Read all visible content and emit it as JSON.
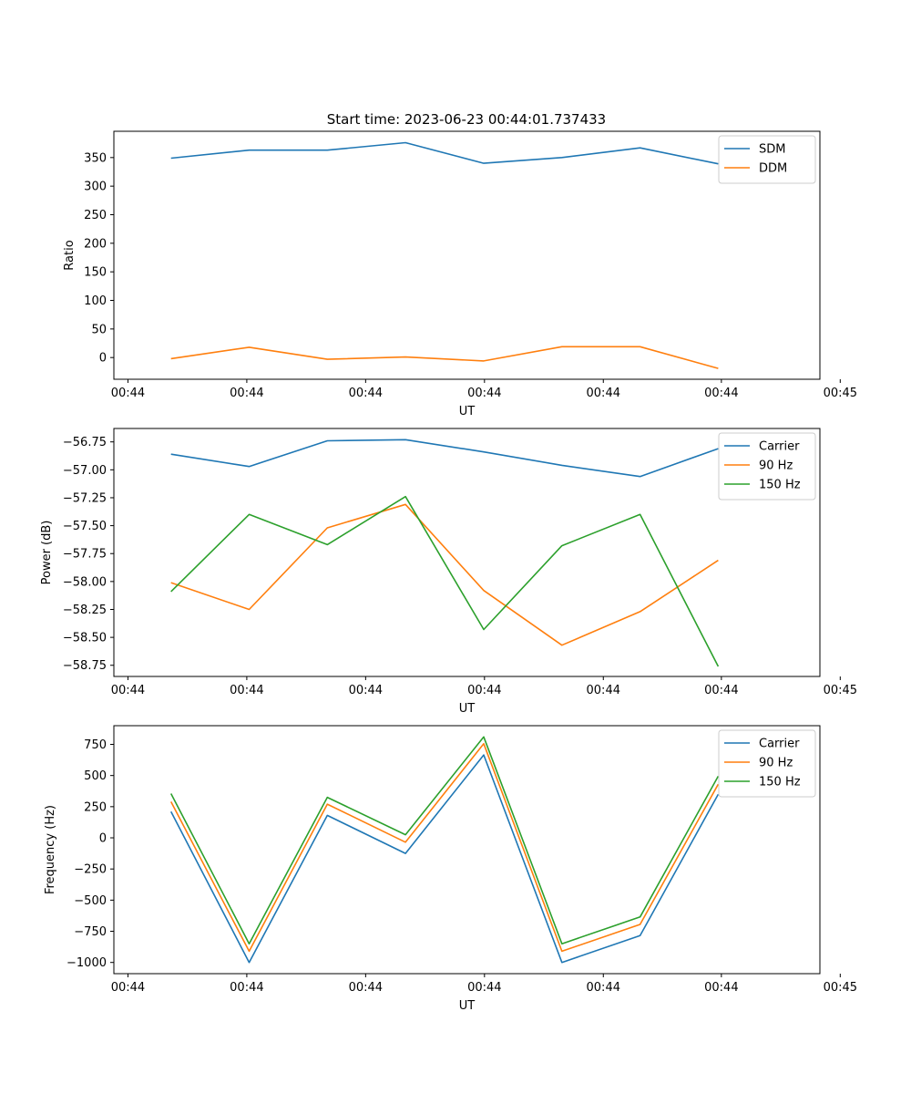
{
  "figure": {
    "suptitle": "Start time: 2023-06-23 00:44:01.737433"
  },
  "chart_data": [
    {
      "type": "line",
      "title": "Start time: 2023-06-23 00:44:01.737433",
      "xlabel": "UT",
      "ylabel": "Ratio",
      "x": [
        1,
        2,
        3,
        4,
        5,
        6,
        7,
        8
      ],
      "xlim": [
        0.27,
        9.3
      ],
      "xticks": [
        {
          "pos": 0.45,
          "label": "00:44"
        },
        {
          "pos": 1.97,
          "label": "00:44"
        },
        {
          "pos": 3.49,
          "label": "00:44"
        },
        {
          "pos": 5.01,
          "label": "00:44"
        },
        {
          "pos": 6.53,
          "label": "00:44"
        },
        {
          "pos": 8.04,
          "label": "00:44"
        },
        {
          "pos": 9.56,
          "label": "00:45"
        }
      ],
      "ylim": [
        -38,
        396
      ],
      "yticks": [
        0,
        50,
        100,
        150,
        200,
        250,
        300,
        350
      ],
      "grid": false,
      "legend_position": "upper right",
      "series": [
        {
          "name": "SDM",
          "color": "#1f77b4",
          "values": [
            349,
            363,
            363,
            376,
            340,
            350,
            367,
            339
          ]
        },
        {
          "name": "DDM",
          "color": "#ff7f0e",
          "values": [
            -2,
            18,
            -3,
            1,
            -6,
            19,
            19,
            -19
          ]
        }
      ]
    },
    {
      "type": "line",
      "title": "",
      "xlabel": "UT",
      "ylabel": "Power (dB)",
      "x": [
        1,
        2,
        3,
        4,
        5,
        6,
        7,
        8
      ],
      "xlim": [
        0.27,
        9.3
      ],
      "xticks": [
        {
          "pos": 0.45,
          "label": "00:44"
        },
        {
          "pos": 1.97,
          "label": "00:44"
        },
        {
          "pos": 3.49,
          "label": "00:44"
        },
        {
          "pos": 5.01,
          "label": "00:44"
        },
        {
          "pos": 6.53,
          "label": "00:44"
        },
        {
          "pos": 8.04,
          "label": "00:44"
        },
        {
          "pos": 9.56,
          "label": "00:45"
        }
      ],
      "ylim": [
        -58.85,
        -56.63
      ],
      "yticks": [
        -58.75,
        -58.5,
        -58.25,
        -58.0,
        -57.75,
        -57.5,
        -57.25,
        -57.0,
        -56.75
      ],
      "ytick_decimals": 2,
      "grid": false,
      "legend_position": "upper right",
      "series": [
        {
          "name": "Carrier",
          "color": "#1f77b4",
          "values": [
            -56.86,
            -56.97,
            -56.74,
            -56.73,
            -56.84,
            -56.96,
            -57.06,
            -56.81
          ]
        },
        {
          "name": "90 Hz",
          "color": "#ff7f0e",
          "values": [
            -58.01,
            -58.25,
            -57.52,
            -57.31,
            -58.08,
            -58.57,
            -58.27,
            -57.81
          ]
        },
        {
          "name": "150 Hz",
          "color": "#2ca02c",
          "values": [
            -58.09,
            -57.4,
            -57.67,
            -57.24,
            -58.43,
            -57.68,
            -57.4,
            -58.76
          ]
        }
      ]
    },
    {
      "type": "line",
      "title": "",
      "xlabel": "UT",
      "ylabel": "Frequency (Hz)",
      "x": [
        1,
        2,
        3,
        4,
        5,
        6,
        7,
        8
      ],
      "xlim": [
        0.27,
        9.3
      ],
      "xticks": [
        {
          "pos": 0.45,
          "label": "00:44"
        },
        {
          "pos": 1.97,
          "label": "00:44"
        },
        {
          "pos": 3.49,
          "label": "00:44"
        },
        {
          "pos": 5.01,
          "label": "00:44"
        },
        {
          "pos": 6.53,
          "label": "00:44"
        },
        {
          "pos": 8.04,
          "label": "00:44"
        },
        {
          "pos": 9.56,
          "label": "00:45"
        }
      ],
      "ylim": [
        -1090,
        900
      ],
      "yticks": [
        -1000,
        -750,
        -500,
        -250,
        0,
        250,
        500,
        750
      ],
      "grid": false,
      "legend_position": "upper right",
      "series": [
        {
          "name": "Carrier",
          "color": "#1f77b4",
          "values": [
            210,
            -1000,
            180,
            -125,
            665,
            -1000,
            -785,
            350
          ]
        },
        {
          "name": "90 Hz",
          "color": "#ff7f0e",
          "values": [
            290,
            -910,
            270,
            -35,
            755,
            -910,
            -695,
            430
          ]
        },
        {
          "name": "150 Hz",
          "color": "#2ca02c",
          "values": [
            355,
            -850,
            325,
            25,
            810,
            -850,
            -635,
            495
          ]
        }
      ]
    }
  ]
}
